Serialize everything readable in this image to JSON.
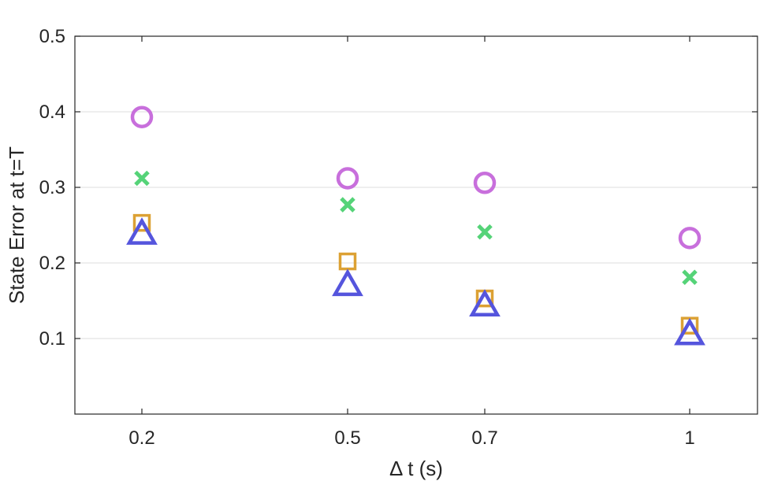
{
  "chart_data": {
    "type": "scatter",
    "title": "",
    "xlabel": "Δ t (s)",
    "ylabel": "State Error at t=T",
    "x_categories": [
      "0.2",
      "0.5",
      "0.7",
      "1"
    ],
    "x_values": [
      0.2,
      0.5,
      0.7,
      1
    ],
    "xlim": [
      0.1,
      1.1
    ],
    "ylim": [
      0,
      0.5
    ],
    "yticks": [
      "0.1",
      "0.2",
      "0.3",
      "0.4",
      "0.5"
    ],
    "ytick_values": [
      0.1,
      0.2,
      0.3,
      0.4,
      0.5
    ],
    "grid": "horizontal",
    "legend": "none",
    "series": [
      {
        "marker": "circle",
        "color": "#c86fdc",
        "values": [
          0.393,
          0.312,
          0.306,
          0.233
        ]
      },
      {
        "marker": "x",
        "color": "#55d378",
        "values": [
          0.312,
          0.277,
          0.241,
          0.181
        ]
      },
      {
        "marker": "square",
        "color": "#dca134",
        "values": [
          0.253,
          0.202,
          0.153,
          0.117
        ]
      },
      {
        "marker": "triangle",
        "color": "#5555dd",
        "values": [
          0.24,
          0.172,
          0.145,
          0.107
        ]
      }
    ]
  }
}
